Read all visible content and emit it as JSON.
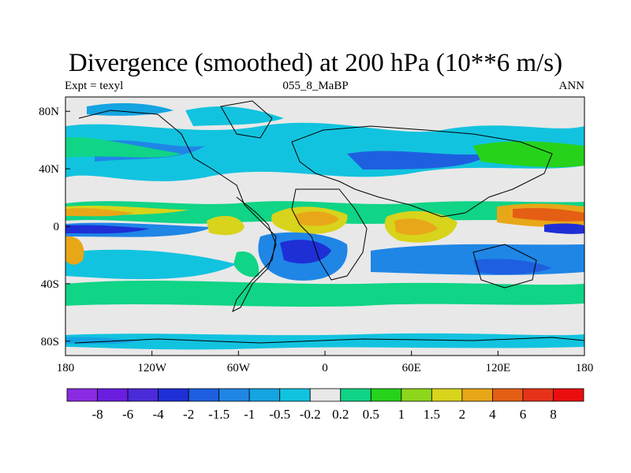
{
  "title": "Divergence (smoothed) at 200 hPa (10**6 m/s)",
  "subtitle_left": "Expt = texyl",
  "subtitle_center": "055_8_MaBP",
  "subtitle_right": "ANN",
  "chart_data": {
    "type": "heatmap",
    "projection": "cylindrical-equidistant",
    "field": "200 hPa divergence (smoothed), annual mean",
    "lon_range": [
      -180,
      180
    ],
    "lat_range": [
      -90,
      90
    ],
    "x_ticks": [
      {
        "value": -180,
        "label": "180"
      },
      {
        "value": -120,
        "label": "120W"
      },
      {
        "value": -60,
        "label": "60W"
      },
      {
        "value": 0,
        "label": "0"
      },
      {
        "value": 60,
        "label": "60E"
      },
      {
        "value": 120,
        "label": "120E"
      },
      {
        "value": 180,
        "label": "180"
      }
    ],
    "y_ticks": [
      {
        "value": 80,
        "label": "80N"
      },
      {
        "value": 40,
        "label": "40N"
      },
      {
        "value": 0,
        "label": "0"
      },
      {
        "value": -40,
        "label": "40S"
      },
      {
        "value": -80,
        "label": "80S"
      }
    ],
    "colorbar": {
      "levels": [
        "-8",
        "-6",
        "-4",
        "-2",
        "-1.5",
        "-1",
        "-0.5",
        "-0.2",
        "0.2",
        "0.5",
        "1",
        "1.5",
        "2",
        "4",
        "6",
        "8"
      ],
      "colors": [
        "#8a2be2",
        "#6a1ee0",
        "#4b2ad8",
        "#1f2fd6",
        "#1e5fe0",
        "#1f86e6",
        "#14a4e2",
        "#12c3df",
        "#e8e8e8",
        "#10d486",
        "#27d21a",
        "#8ed61b",
        "#d8d31b",
        "#e8a718",
        "#e45f14",
        "#e7321a",
        "#eb0e0e"
      ]
    },
    "features": [
      {
        "name": "equatorial-divergence-band-pacific",
        "type": "positive",
        "level": "1.5"
      },
      {
        "name": "south-america-convergence",
        "type": "negative",
        "level": "-1.5"
      },
      {
        "name": "maritime-continent-divergence",
        "type": "positive",
        "level": "2"
      },
      {
        "name": "africa-divergence",
        "type": "positive",
        "level": "1.5"
      },
      {
        "name": "east-pacific-convergence",
        "type": "negative",
        "level": "-2"
      }
    ]
  }
}
